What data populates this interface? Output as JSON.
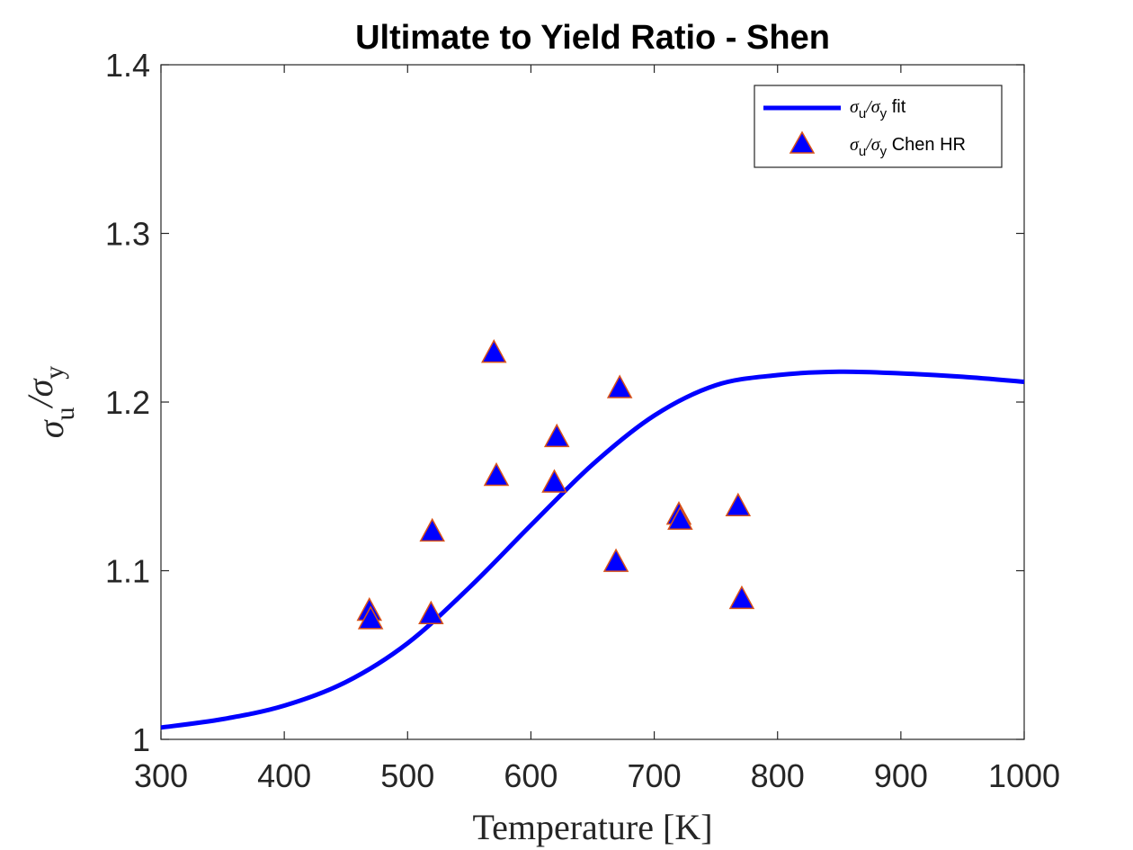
{
  "chart_data": {
    "type": "scatter",
    "title": "Ultimate to Yield Ratio - Shen",
    "xlabel": "Temperature [K]",
    "ylabel": {
      "main": "σ",
      "sub1": "u",
      "slash": "/σ",
      "sub2": "y"
    },
    "xlim": [
      300,
      1000
    ],
    "ylim": [
      1.0,
      1.4
    ],
    "xticks": [
      "300",
      "400",
      "500",
      "600",
      "700",
      "800",
      "900",
      "1000"
    ],
    "yticks": [
      "1",
      "1.1",
      "1.2",
      "1.3",
      "1.4"
    ],
    "grid": false,
    "legend_position": "top-right",
    "series": [
      {
        "name": "σu/σy fit",
        "legend": {
          "s1": "σ",
          "sub1": "u",
          "mid": "/σ",
          "sub2": "y",
          "tail": " fit"
        },
        "kind": "line",
        "color": "#0000ff",
        "x": [
          300,
          350,
          400,
          450,
          500,
          550,
          600,
          650,
          700,
          750,
          800,
          850,
          900,
          950,
          1000
        ],
        "y": [
          1.007,
          1.012,
          1.02,
          1.034,
          1.057,
          1.09,
          1.127,
          1.163,
          1.192,
          1.21,
          1.216,
          1.218,
          1.217,
          1.215,
          1.212
        ]
      },
      {
        "name": "σu/σy Chen HR",
        "legend": {
          "s1": "σ",
          "sub1": "u",
          "mid": "/σ",
          "sub2": "y",
          "tail": " Chen HR"
        },
        "kind": "scatter",
        "marker": "triangle",
        "color": "#0000ff",
        "edge_color": "#d95319",
        "x": [
          469,
          470,
          519,
          520,
          570,
          572,
          619,
          621,
          669,
          672,
          720,
          721,
          768,
          771
        ],
        "y": [
          1.076,
          1.071,
          1.074,
          1.123,
          1.229,
          1.156,
          1.152,
          1.179,
          1.105,
          1.208,
          1.133,
          1.13,
          1.138,
          1.083
        ]
      }
    ]
  }
}
